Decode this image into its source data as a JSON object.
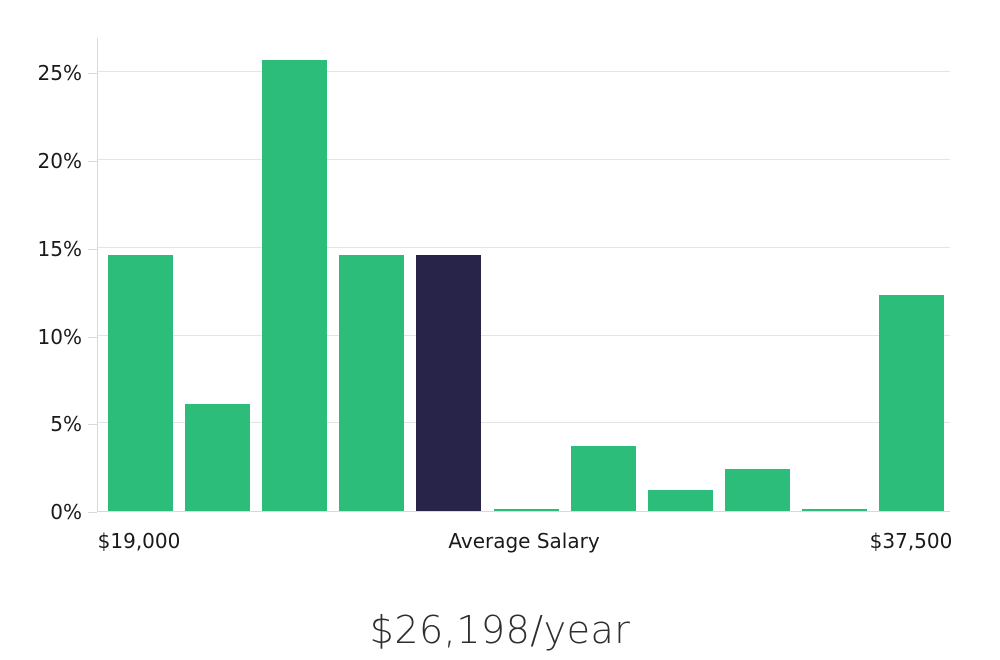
{
  "chart_data": {
    "type": "bar",
    "values": [
      14.6,
      6.1,
      25.7,
      14.6,
      14.6,
      0.1,
      3.7,
      1.2,
      2.4,
      0.1,
      12.3
    ],
    "unit": "%",
    "highlight_index": 4,
    "y_axis": {
      "ticks": [
        0,
        5,
        10,
        15,
        20,
        25
      ],
      "tick_suffix": "%",
      "max": 27.0,
      "grid": true
    },
    "x_axis": {
      "left_label": "$19,000",
      "center_label": "Average Salary",
      "right_label": "$37,500"
    },
    "caption": "$26,198/year",
    "colors": {
      "bar": "#2dbd7b",
      "highlight": "#272349",
      "grid": "#e4e4e4",
      "axis": "#d9d9d9",
      "tick_text": "#1a1a1a",
      "caption_text": "#2e2e2e"
    }
  }
}
